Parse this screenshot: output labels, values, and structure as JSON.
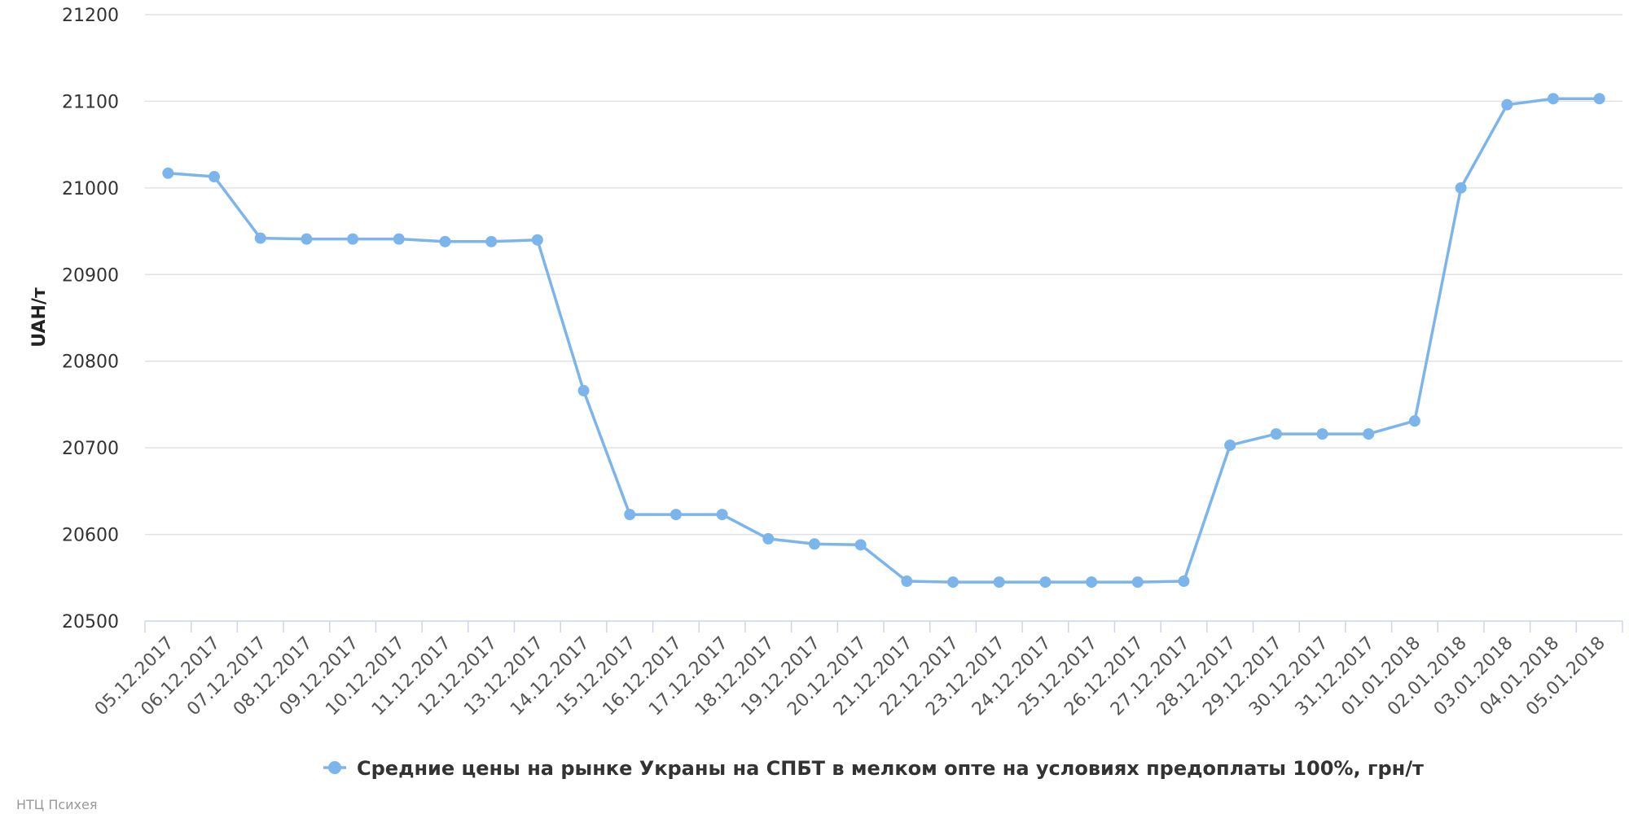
{
  "chart_data": {
    "type": "line",
    "title": "",
    "xlabel": "",
    "ylabel": "UAH/т",
    "ylim": [
      20500,
      21200
    ],
    "yticks": [
      20500,
      20600,
      20700,
      20800,
      20900,
      21000,
      21100,
      21200
    ],
    "grid": true,
    "legend_position": "bottom-center",
    "categories": [
      "05.12.2017",
      "06.12.2017",
      "07.12.2017",
      "08.12.2017",
      "09.12.2017",
      "10.12.2017",
      "11.12.2017",
      "12.12.2017",
      "13.12.2017",
      "14.12.2017",
      "15.12.2017",
      "16.12.2017",
      "17.12.2017",
      "18.12.2017",
      "19.12.2017",
      "20.12.2017",
      "21.12.2017",
      "22.12.2017",
      "23.12.2017",
      "24.12.2017",
      "25.12.2017",
      "26.12.2017",
      "27.12.2017",
      "28.12.2017",
      "29.12.2017",
      "30.12.2017",
      "31.12.2017",
      "01.01.2018",
      "02.01.2018",
      "03.01.2018",
      "04.01.2018",
      "05.01.2018"
    ],
    "series": [
      {
        "name": "Средние цены на рынке Украны на СПБТ в мелком опте на условиях предоплаты 100%, грн/т",
        "color": "#7cb5ec",
        "values": [
          21017,
          21013,
          20942,
          20941,
          20941,
          20941,
          20938,
          20938,
          20940,
          20766,
          20623,
          20623,
          20623,
          20595,
          20589,
          20588,
          20546,
          20545,
          20545,
          20545,
          20545,
          20545,
          20546,
          20703,
          20716,
          20716,
          20716,
          20731,
          21000,
          21096,
          21103,
          21103
        ]
      }
    ]
  },
  "credit": "НТЦ Психея"
}
